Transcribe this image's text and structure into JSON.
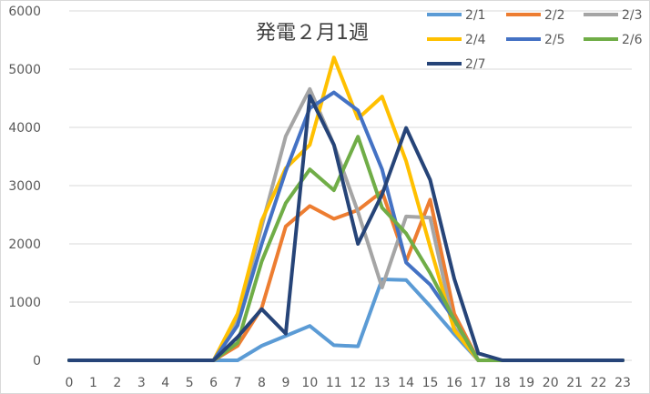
{
  "chart_data": {
    "type": "line",
    "title": "発電２月1週",
    "xlabel": "",
    "ylabel": "",
    "ylim": [
      0,
      6000
    ],
    "yticks": [
      0,
      1000,
      2000,
      3000,
      4000,
      5000,
      6000
    ],
    "categories": [
      "0",
      "1",
      "2",
      "3",
      "4",
      "5",
      "6",
      "7",
      "8",
      "9",
      "10",
      "11",
      "12",
      "13",
      "14",
      "15",
      "16",
      "17",
      "18",
      "19",
      "20",
      "21",
      "22",
      "23"
    ],
    "grid": true,
    "legend_position": "top-right",
    "series": [
      {
        "name": "2/1",
        "color": "#5B9BD5",
        "values": [
          0,
          0,
          0,
          0,
          0,
          0,
          0,
          0,
          250,
          420,
          590,
          260,
          240,
          1390,
          1380,
          930,
          450,
          0,
          0,
          0,
          0,
          0,
          0,
          0
        ]
      },
      {
        "name": "2/2",
        "color": "#ED7D31",
        "values": [
          0,
          0,
          0,
          0,
          0,
          0,
          0,
          250,
          900,
          2300,
          2650,
          2430,
          2580,
          2900,
          1700,
          2760,
          800,
          0,
          0,
          0,
          0,
          0,
          0,
          0
        ]
      },
      {
        "name": "2/3",
        "color": "#A5A5A5",
        "values": [
          0,
          0,
          0,
          0,
          0,
          0,
          0,
          700,
          2300,
          3850,
          4660,
          3700,
          2550,
          1250,
          2470,
          2450,
          560,
          0,
          0,
          0,
          0,
          0,
          0,
          0
        ]
      },
      {
        "name": "2/4",
        "color": "#FFC000",
        "values": [
          0,
          0,
          0,
          0,
          0,
          0,
          0,
          800,
          2400,
          3300,
          3700,
          5200,
          4150,
          4530,
          3420,
          1950,
          520,
          0,
          0,
          0,
          0,
          0,
          0,
          0
        ]
      },
      {
        "name": "2/5",
        "color": "#4472C4",
        "values": [
          0,
          0,
          0,
          0,
          0,
          0,
          0,
          600,
          2000,
          3250,
          4330,
          4600,
          4290,
          3280,
          1680,
          1300,
          700,
          0,
          0,
          0,
          0,
          0,
          0,
          0
        ]
      },
      {
        "name": "2/6",
        "color": "#70AD47",
        "values": [
          0,
          0,
          0,
          0,
          0,
          0,
          0,
          300,
          1700,
          2700,
          3280,
          2920,
          3840,
          2620,
          2180,
          1500,
          700,
          0,
          0,
          0,
          0,
          0,
          0,
          0
        ]
      },
      {
        "name": "2/7",
        "color": "#264478",
        "values": [
          0,
          0,
          0,
          0,
          0,
          0,
          0,
          400,
          880,
          460,
          4540,
          3700,
          2000,
          2850,
          3990,
          3100,
          1400,
          120,
          0,
          0,
          0,
          0,
          0,
          0
        ]
      }
    ]
  }
}
